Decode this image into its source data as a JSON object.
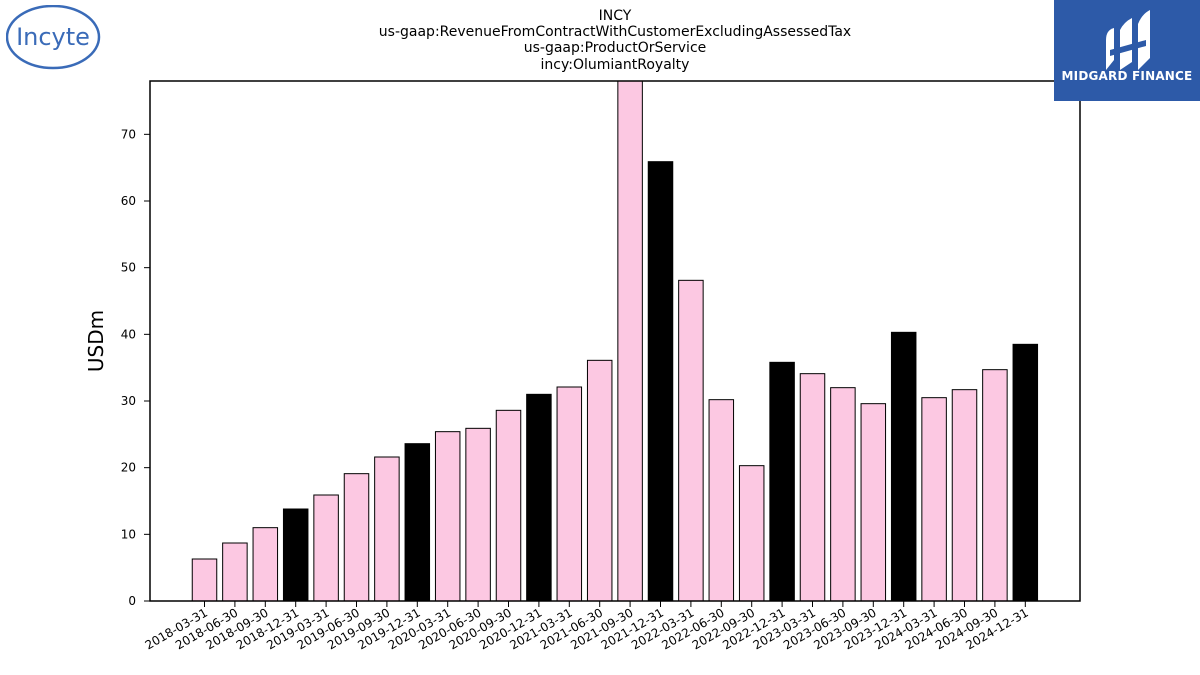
{
  "brand": {
    "left_logo_text": "Incyte",
    "right_logo_text": "MIDGARD FINANCE",
    "left_logo_color": "#3a6bb8",
    "right_logo_bg": "#2d5aa8"
  },
  "chart_data": {
    "type": "bar",
    "title_lines": [
      "INCY",
      "us-gaap:RevenueFromContractWithCustomerExcludingAssessedTax",
      "us-gaap:ProductOrService",
      "incy:OlumiantRoyalty"
    ],
    "xlabel": "",
    "ylabel": "USDm",
    "ylim": [
      0,
      78
    ],
    "yticks": [
      0,
      10,
      20,
      30,
      40,
      50,
      60,
      70
    ],
    "grid": false,
    "colors": {
      "quarter": "#fcc8e2",
      "year_end": "#000000",
      "edge": "#000000"
    },
    "categories": [
      "2018-03-31",
      "2018-06-30",
      "2018-09-30",
      "2018-12-31",
      "2019-03-31",
      "2019-06-30",
      "2019-09-30",
      "2019-12-31",
      "2020-03-31",
      "2020-06-30",
      "2020-09-30",
      "2020-12-31",
      "2021-03-31",
      "2021-06-30",
      "2021-09-30",
      "2021-12-31",
      "2022-03-31",
      "2022-06-30",
      "2022-09-30",
      "2022-12-31",
      "2023-03-31",
      "2023-06-30",
      "2023-09-30",
      "2023-12-31",
      "2024-03-31",
      "2024-06-30",
      "2024-09-30",
      "2024-12-31"
    ],
    "values": [
      6.3,
      8.7,
      11.0,
      13.8,
      15.9,
      19.1,
      21.6,
      23.6,
      25.4,
      25.9,
      28.6,
      31.0,
      32.1,
      36.1,
      78.0,
      65.9,
      48.1,
      30.2,
      20.3,
      35.8,
      34.1,
      32.0,
      29.6,
      40.3,
      30.5,
      31.7,
      34.7,
      38.5
    ],
    "year_end": [
      false,
      false,
      false,
      true,
      false,
      false,
      false,
      true,
      false,
      false,
      false,
      true,
      false,
      false,
      false,
      true,
      false,
      false,
      false,
      true,
      false,
      false,
      false,
      true,
      false,
      false,
      false,
      true
    ]
  }
}
